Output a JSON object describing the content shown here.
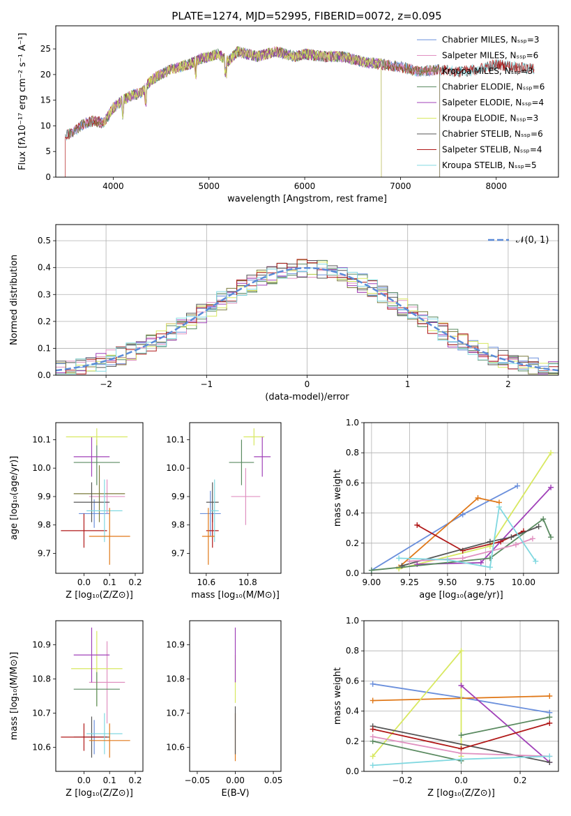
{
  "figure": {
    "title": "PLATE=1274, MJD=52995, FIBERID=0072, z=0.095"
  },
  "colors": {
    "chabrier_miles": "#6a8fdc",
    "salpeter_miles": "#e090c0",
    "kroupa_miles": "#7a7a3a",
    "chabrier_elodie": "#5a8a60",
    "salpeter_elodie": "#a040b8",
    "kroupa_elodie": "#d8e860",
    "chabrier_stelib": "#555555",
    "salpeter_stelib": "#b01818",
    "kroupa_stelib": "#80d8e0",
    "orange": "#e07818",
    "grid": "#b0b0b0",
    "normal_line": "#5b8bd8"
  },
  "chart_data": [
    {
      "id": "spectrum",
      "type": "line",
      "title": "PLATE=1274, MJD=52995, FIBERID=0072, z=0.095",
      "xlabel": "wavelength [Angstrom, rest frame]",
      "ylabel": "Flux [fλ10⁻¹⁷ erg cm⁻² s⁻¹ A⁻¹]",
      "xlim": [
        3400,
        8650
      ],
      "ylim": [
        0,
        29.5
      ],
      "xticks": [
        "4000",
        "5000",
        "6000",
        "7000",
        "8000"
      ],
      "yticks": [
        "0",
        "5",
        "10",
        "15",
        "20",
        "25"
      ],
      "legend_position": "top-right",
      "legend": [
        "Chabrier MILES, Nₛₛₚ=3",
        "Salpeter MILES, Nₛₛₚ=6",
        "Kroupa MILES, Nₛₛₚ=3",
        "Chabrier ELODIE, Nₛₛₚ=6",
        "Salpeter ELODIE, Nₛₛₚ=4",
        "Kroupa ELODIE, Nₛₛₚ=3",
        "Chabrier STELIB, Nₛₛₚ=6",
        "Salpeter STELIB, Nₛₛₚ=4",
        "Kroupa STELIB, Nₛₛₚ=5"
      ],
      "continuum": [
        [
          3500,
          8
        ],
        [
          3600,
          9
        ],
        [
          3700,
          10.5
        ],
        [
          3800,
          11
        ],
        [
          3900,
          10.5
        ],
        [
          4000,
          13.5
        ],
        [
          4100,
          15
        ],
        [
          4200,
          16
        ],
        [
          4300,
          16.5
        ],
        [
          4400,
          19
        ],
        [
          4500,
          20
        ],
        [
          4600,
          21
        ],
        [
          4700,
          21.5
        ],
        [
          4800,
          22
        ],
        [
          4900,
          23
        ],
        [
          5000,
          23.5
        ],
        [
          5100,
          24
        ],
        [
          5200,
          22.5
        ],
        [
          5300,
          24.5
        ],
        [
          5400,
          24
        ],
        [
          5500,
          23.5
        ],
        [
          5600,
          24
        ],
        [
          5700,
          24.5
        ],
        [
          5800,
          24
        ],
        [
          5900,
          23.5
        ],
        [
          6000,
          24
        ],
        [
          6200,
          23.5
        ],
        [
          6400,
          23.5
        ],
        [
          6600,
          22.5
        ],
        [
          6800,
          22
        ],
        [
          7000,
          21.5
        ],
        [
          7200,
          20.5
        ],
        [
          7400,
          21
        ],
        [
          7600,
          20.5
        ],
        [
          7800,
          21
        ],
        [
          8000,
          22
        ],
        [
          8200,
          21.5
        ],
        [
          8400,
          21
        ]
      ]
    },
    {
      "id": "residuals",
      "type": "area",
      "xlabel": "(data-model)/error",
      "ylabel": "Normed distribution",
      "xlim": [
        -2.5,
        2.5
      ],
      "ylim": [
        0,
        0.56
      ],
      "xticks": [
        "−2",
        "−1",
        "0",
        "1",
        "2"
      ],
      "yticks": [
        "0.0",
        "0.1",
        "0.2",
        "0.3",
        "0.4",
        "0.5"
      ],
      "legend_position": "top-right",
      "legend": [
        "𝒩(0, 1)"
      ],
      "grid": true
    },
    {
      "id": "age-vs-Z",
      "type": "scatter",
      "xlabel": "Z [log₁₀(Z/Z⊙)]",
      "ylabel": "age  [log₁₀(age/yr)]",
      "xlim": [
        -0.11,
        0.23
      ],
      "ylim": [
        9.63,
        10.16
      ],
      "xticks": [
        "0.0",
        "0.1",
        "0.2"
      ],
      "yticks": [
        "9.7",
        "9.8",
        "9.9",
        "10.0",
        "10.1"
      ],
      "points": [
        {
          "x": 0.04,
          "y": 9.84,
          "xerr": 0.06,
          "yerr": 0.05,
          "color": "chabrier_miles"
        },
        {
          "x": 0.09,
          "y": 9.9,
          "xerr": 0.07,
          "yerr": 0.06,
          "color": "salpeter_miles"
        },
        {
          "x": 0.06,
          "y": 9.91,
          "xerr": 0.1,
          "yerr": 0.1,
          "color": "kroupa_miles"
        },
        {
          "x": 0.05,
          "y": 10.02,
          "xerr": 0.09,
          "yerr": 0.08,
          "color": "chabrier_elodie"
        },
        {
          "x": 0.03,
          "y": 10.04,
          "xerr": 0.07,
          "yerr": 0.07,
          "color": "salpeter_elodie"
        },
        {
          "x": 0.05,
          "y": 10.11,
          "xerr": 0.12,
          "yerr": 0.03,
          "color": "kroupa_elodie"
        },
        {
          "x": 0.03,
          "y": 9.88,
          "xerr": 0.07,
          "yerr": 0.07,
          "color": "chabrier_stelib"
        },
        {
          "x": 0.0,
          "y": 9.78,
          "xerr": 0.09,
          "yerr": 0.06,
          "color": "salpeter_stelib"
        },
        {
          "x": 0.08,
          "y": 9.85,
          "xerr": 0.07,
          "yerr": 0.11,
          "color": "kroupa_stelib"
        },
        {
          "x": 0.1,
          "y": 9.76,
          "xerr": 0.08,
          "yerr": 0.1,
          "color": "orange"
        }
      ]
    },
    {
      "id": "age-vs-mass",
      "type": "scatter",
      "xlabel": "mass [log₁₀(M/M⊙)]",
      "ylabel": "",
      "xlim": [
        10.52,
        10.96
      ],
      "ylim": [
        9.63,
        10.16
      ],
      "xticks": [
        "10.6",
        "10.8"
      ],
      "yticks": [
        "9.7",
        "9.8",
        "9.9",
        "10.0",
        "10.1"
      ],
      "points": [
        {
          "x": 10.62,
          "y": 9.84,
          "xerr": 0.05,
          "yerr": 0.08,
          "color": "chabrier_miles"
        },
        {
          "x": 10.79,
          "y": 9.9,
          "xerr": 0.07,
          "yerr": 0.1,
          "color": "salpeter_miles"
        },
        {
          "x": 10.83,
          "y": 10.11,
          "xerr": 0.05,
          "yerr": 0.03,
          "color": "kroupa_elodie"
        },
        {
          "x": 10.77,
          "y": 10.02,
          "xerr": 0.06,
          "yerr": 0.08,
          "color": "chabrier_elodie"
        },
        {
          "x": 10.87,
          "y": 10.04,
          "xerr": 0.04,
          "yerr": 0.07,
          "color": "salpeter_elodie"
        },
        {
          "x": 10.63,
          "y": 9.88,
          "xerr": 0.03,
          "yerr": 0.07,
          "color": "chabrier_stelib"
        },
        {
          "x": 10.63,
          "y": 9.78,
          "xerr": 0.03,
          "yerr": 0.06,
          "color": "salpeter_stelib"
        },
        {
          "x": 10.64,
          "y": 9.85,
          "xerr": 0.02,
          "yerr": 0.11,
          "color": "kroupa_stelib"
        },
        {
          "x": 10.61,
          "y": 9.76,
          "xerr": 0.03,
          "yerr": 0.1,
          "color": "orange"
        }
      ]
    },
    {
      "id": "weight-vs-age",
      "type": "line",
      "xlabel": "age  [log₁₀(age/yr)]",
      "ylabel": "mass weight",
      "xlim": [
        8.95,
        10.23
      ],
      "ylim": [
        0.0,
        1.0
      ],
      "xticks": [
        "9.00",
        "9.25",
        "9.50",
        "9.75",
        "10.00"
      ],
      "yticks": [
        "0.0",
        "0.2",
        "0.4",
        "0.6",
        "0.8",
        "1.0"
      ],
      "grid": true,
      "series": [
        {
          "color": "chabrier_miles",
          "x": [
            9.0,
            9.6,
            9.96
          ],
          "y": [
            0.02,
            0.39,
            0.58
          ]
        },
        {
          "color": "orange",
          "x": [
            9.18,
            9.7,
            9.84
          ],
          "y": [
            0.04,
            0.5,
            0.47
          ]
        },
        {
          "color": "kroupa_elodie",
          "x": [
            9.18,
            9.78,
            10.18
          ],
          "y": [
            0.03,
            0.18,
            0.8
          ]
        },
        {
          "color": "salpeter_elodie",
          "x": [
            9.3,
            9.72,
            10.18
          ],
          "y": [
            0.06,
            0.07,
            0.57
          ]
        },
        {
          "color": "salpeter_stelib",
          "x": [
            9.3,
            9.6,
            9.85,
            10.0
          ],
          "y": [
            0.32,
            0.15,
            0.21,
            0.28
          ]
        },
        {
          "color": "chabrier_elodie",
          "x": [
            9.0,
            9.78,
            10.13,
            10.18
          ],
          "y": [
            0.02,
            0.1,
            0.36,
            0.24
          ]
        },
        {
          "color": "chabrier_stelib",
          "x": [
            9.2,
            9.78,
            9.92,
            10.1
          ],
          "y": [
            0.05,
            0.21,
            0.24,
            0.31
          ]
        },
        {
          "color": "salpeter_miles",
          "x": [
            9.25,
            9.6,
            9.95,
            10.06
          ],
          "y": [
            0.08,
            0.1,
            0.19,
            0.23
          ]
        },
        {
          "color": "kroupa_stelib",
          "x": [
            9.18,
            9.5,
            9.78,
            9.84,
            10.08
          ],
          "y": [
            0.1,
            0.09,
            0.04,
            0.44,
            0.08
          ]
        }
      ]
    },
    {
      "id": "mass-vs-Z",
      "type": "scatter",
      "xlabel": "Z [log₁₀(Z/Z⊙)]",
      "ylabel": "mass [log₁₀(M/M⊙)]",
      "xlim": [
        -0.11,
        0.23
      ],
      "ylim": [
        10.53,
        10.97
      ],
      "xticks": [
        "0.0",
        "0.1",
        "0.2"
      ],
      "yticks": [
        "10.6",
        "10.7",
        "10.8",
        "10.9"
      ],
      "points": [
        {
          "x": 0.04,
          "y": 10.63,
          "xerr": 0.05,
          "yerr": 0.05,
          "color": "chabrier_miles"
        },
        {
          "x": 0.09,
          "y": 10.79,
          "xerr": 0.07,
          "yerr": 0.12,
          "color": "salpeter_miles"
        },
        {
          "x": 0.05,
          "y": 10.83,
          "xerr": 0.1,
          "yerr": 0.11,
          "color": "kroupa_elodie"
        },
        {
          "x": 0.05,
          "y": 10.77,
          "xerr": 0.09,
          "yerr": 0.05,
          "color": "chabrier_elodie"
        },
        {
          "x": 0.03,
          "y": 10.87,
          "xerr": 0.07,
          "yerr": 0.08,
          "color": "salpeter_elodie"
        },
        {
          "x": 0.03,
          "y": 10.63,
          "xerr": 0.07,
          "yerr": 0.06,
          "color": "chabrier_stelib"
        },
        {
          "x": 0.0,
          "y": 10.63,
          "xerr": 0.09,
          "yerr": 0.04,
          "color": "salpeter_stelib"
        },
        {
          "x": 0.08,
          "y": 10.64,
          "xerr": 0.07,
          "yerr": 0.06,
          "color": "kroupa_stelib"
        },
        {
          "x": 0.1,
          "y": 10.62,
          "xerr": 0.08,
          "yerr": 0.05,
          "color": "orange"
        }
      ]
    },
    {
      "id": "mass-vs-ebv",
      "type": "scatter",
      "xlabel": "E(B-V)",
      "ylabel": "",
      "xlim": [
        -0.06,
        0.06
      ],
      "ylim": [
        10.53,
        10.97
      ],
      "xticks": [
        "−0.05",
        "0.00",
        "0.05"
      ],
      "yticks": [
        "10.6",
        "10.7",
        "10.8",
        "10.9"
      ],
      "points": [
        {
          "x": 0.0,
          "y": 10.63,
          "xerr": 0.0,
          "yerr": 0.07,
          "color": "orange"
        },
        {
          "x": 0.0,
          "y": 10.8,
          "xerr": 0.0,
          "yerr": 0.07,
          "color": "kroupa_elodie"
        },
        {
          "x": 0.0,
          "y": 10.87,
          "xerr": 0.0,
          "yerr": 0.08,
          "color": "salpeter_elodie"
        },
        {
          "x": 0.0,
          "y": 10.65,
          "xerr": 0.0,
          "yerr": 0.07,
          "color": "chabrier_stelib"
        }
      ]
    },
    {
      "id": "weight-vs-Z",
      "type": "line",
      "xlabel": "Z [log₁₀(Z/Z⊙)]",
      "ylabel": "mass weight",
      "xlim": [
        -0.33,
        0.33
      ],
      "ylim": [
        0.0,
        1.0
      ],
      "xticks": [
        "−0.2",
        "0.0",
        "0.2"
      ],
      "yticks": [
        "0.0",
        "0.2",
        "0.4",
        "0.6",
        "0.8",
        "1.0"
      ],
      "grid": true,
      "series": [
        {
          "color": "chabrier_miles",
          "x": [
            -0.3,
            0.0,
            0.3
          ],
          "y": [
            0.58,
            0.49,
            0.39
          ]
        },
        {
          "color": "orange",
          "x": [
            -0.3,
            0.3
          ],
          "y": [
            0.47,
            0.5
          ]
        },
        {
          "color": "kroupa_elodie",
          "x": [
            -0.3,
            0.0,
            0.0
          ],
          "y": [
            0.1,
            0.8,
            0.1
          ]
        },
        {
          "color": "salpeter_elodie",
          "x": [
            0.0,
            0.3
          ],
          "y": [
            0.57,
            0.06
          ]
        },
        {
          "color": "chabrier_elodie",
          "x": [
            0.0,
            0.3
          ],
          "y": [
            0.24,
            0.36
          ]
        },
        {
          "color": "chabrier_elodie",
          "x": [
            -0.3,
            0.0
          ],
          "y": [
            0.2,
            0.07
          ]
        },
        {
          "color": "chabrier_stelib",
          "x": [
            -0.3,
            0.3
          ],
          "y": [
            0.3,
            0.06
          ]
        },
        {
          "color": "salpeter_stelib",
          "x": [
            -0.3,
            0.0,
            0.3
          ],
          "y": [
            0.28,
            0.15,
            0.32
          ]
        },
        {
          "color": "salpeter_miles",
          "x": [
            -0.3,
            0.0,
            0.3
          ],
          "y": [
            0.23,
            0.12,
            0.1
          ]
        },
        {
          "color": "kroupa_stelib",
          "x": [
            -0.3,
            0.0,
            0.3
          ],
          "y": [
            0.04,
            0.08,
            0.1
          ]
        }
      ]
    }
  ]
}
